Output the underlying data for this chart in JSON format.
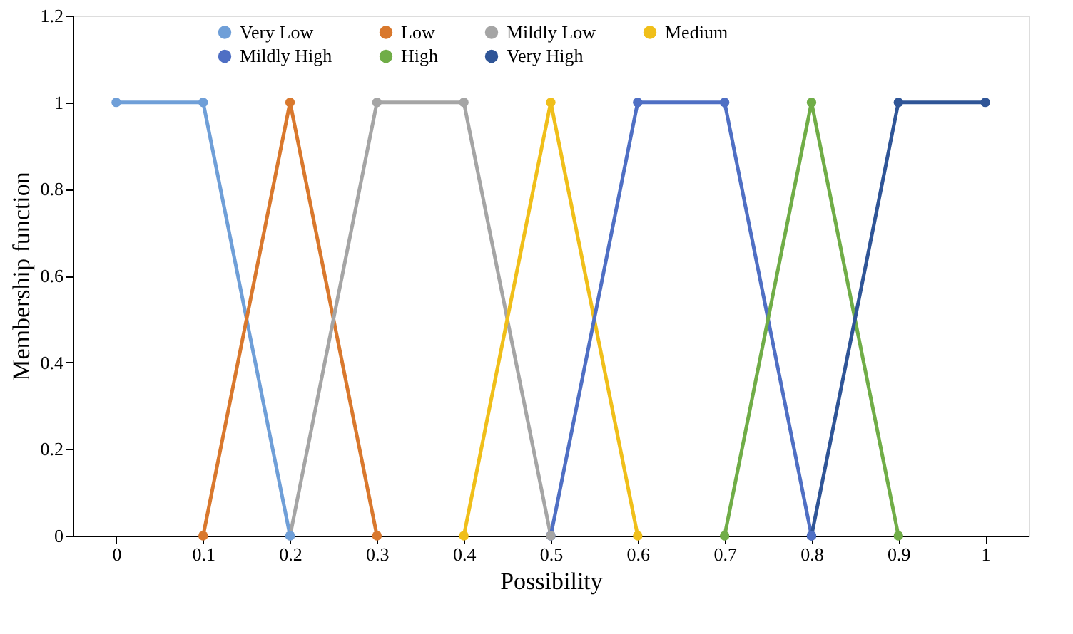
{
  "chart_data": {
    "type": "line",
    "xlabel": "Possibility",
    "ylabel": "Membership function",
    "xlim": [
      -0.05,
      1.05
    ],
    "xticks": [
      0,
      0.1,
      0.2,
      0.3,
      0.4,
      0.5,
      0.6,
      0.7,
      0.8,
      0.9,
      1
    ],
    "ylim": [
      0,
      1.2
    ],
    "yticks": [
      0,
      0.2,
      0.4,
      0.6,
      0.8,
      1,
      1.2
    ],
    "grid": false,
    "legend": "top",
    "marker": "circle",
    "line_style": "solid",
    "series": [
      {
        "name": "Very Low",
        "color": "#6f9fd8",
        "x": [
          0,
          0.1,
          0.2
        ],
        "values": [
          1,
          1,
          0
        ]
      },
      {
        "name": "Low",
        "color": "#d9782d",
        "x": [
          0.1,
          0.2,
          0.3
        ],
        "values": [
          0,
          1,
          0
        ]
      },
      {
        "name": "Mildly Low",
        "color": "#a5a5a5",
        "x": [
          0.2,
          0.3,
          0.4,
          0.5
        ],
        "values": [
          0,
          1,
          1,
          0
        ]
      },
      {
        "name": "Medium",
        "color": "#f0bf1a",
        "x": [
          0.4,
          0.5,
          0.6
        ],
        "values": [
          0,
          1,
          0
        ]
      },
      {
        "name": "Mildly High",
        "color": "#4f6fc4",
        "x": [
          0.5,
          0.6,
          0.7,
          0.8
        ],
        "values": [
          0,
          1,
          1,
          0
        ]
      },
      {
        "name": "High",
        "color": "#70ad47",
        "x": [
          0.7,
          0.8,
          0.9
        ],
        "values": [
          0,
          1,
          0
        ]
      },
      {
        "name": "Very High",
        "color": "#2f5597",
        "x": [
          0.8,
          0.9,
          1
        ],
        "values": [
          0,
          1,
          1
        ]
      }
    ]
  }
}
